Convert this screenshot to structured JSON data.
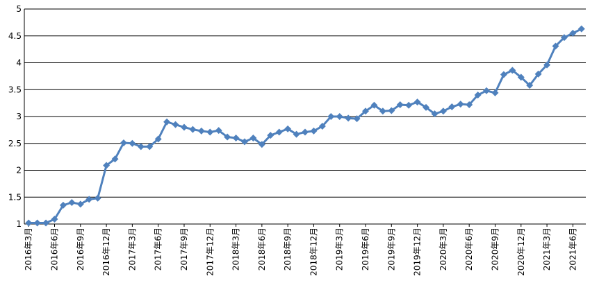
{
  "chart_data": {
    "type": "line",
    "categories": [
      "2016年3月",
      null,
      null,
      "2016年6月",
      null,
      null,
      "2016年9月",
      null,
      null,
      "2016年12月",
      null,
      null,
      "2017年3月",
      null,
      null,
      "2017年6月",
      null,
      null,
      "2017年9月",
      null,
      null,
      "2017年12月",
      null,
      null,
      "2018年3月",
      null,
      null,
      "2018年6月",
      null,
      null,
      "2018年9月",
      null,
      null,
      "2018年12月",
      null,
      null,
      "2019年3月",
      null,
      null,
      "2019年6月",
      null,
      null,
      "2019年9月",
      null,
      null,
      "2019年12月",
      null,
      null,
      "2020年3月",
      null,
      null,
      "2020年6月",
      null,
      null,
      "2020年9月",
      null,
      null,
      "2020年12月",
      null,
      null,
      "2021年3月",
      null,
      null,
      "2021年6月",
      null
    ],
    "values": [
      1.02,
      1.02,
      1.02,
      1.09,
      1.35,
      1.4,
      1.37,
      1.46,
      1.48,
      2.09,
      2.21,
      2.51,
      2.5,
      2.44,
      2.44,
      2.58,
      2.9,
      2.85,
      2.8,
      2.76,
      2.73,
      2.71,
      2.74,
      2.62,
      2.6,
      2.53,
      2.6,
      2.48,
      2.65,
      2.71,
      2.77,
      2.67,
      2.71,
      2.73,
      2.82,
      3.0,
      3.0,
      2.97,
      2.96,
      3.1,
      3.21,
      3.1,
      3.11,
      3.22,
      3.21,
      3.27,
      3.17,
      3.05,
      3.1,
      3.18,
      3.23,
      3.22,
      3.4,
      3.48,
      3.44,
      3.78,
      3.86,
      3.73,
      3.58,
      3.79,
      3.96,
      4.31,
      4.47,
      4.55,
      4.63
    ],
    "color": "#4f81bd",
    "ylim": [
      1,
      5
    ],
    "yticks": [
      1,
      1.5,
      2,
      2.5,
      3,
      3.5,
      4,
      4.5,
      5
    ],
    "grid": true
  }
}
